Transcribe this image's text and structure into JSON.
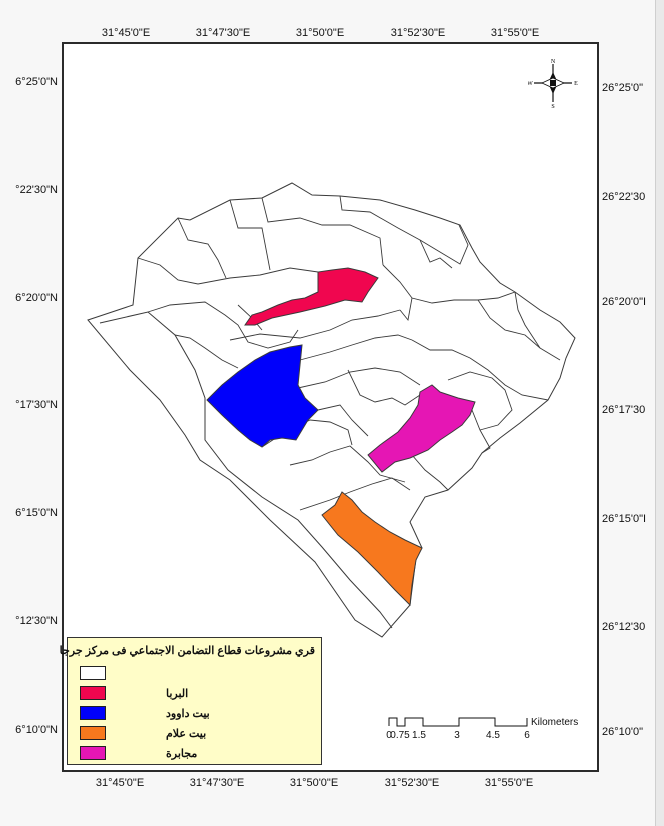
{
  "map": {
    "top_ticks": [
      "31°45'0\"E",
      "31°47'30\"E",
      "31°50'0\"E",
      "31°52'30\"E",
      "31°55'0\"E"
    ],
    "bottom_ticks": [
      "31°45'0\"E",
      "31°47'30\"E",
      "31°50'0\"E",
      "31°52'30\"E",
      "31°55'0\"E"
    ],
    "left_ticks": [
      "6°25'0\"N",
      "°22'30\"N",
      "6°20'0\"N",
      "°17'30\"N",
      "6°15'0\"N",
      "°12'30\"N",
      "6°10'0\"N"
    ],
    "right_ticks": [
      "26°25'0\"",
      "26°22'30",
      "26°20'0\"I",
      "26°17'30",
      "26°15'0\"I",
      "26°12'30",
      "26°10'0\""
    ]
  },
  "legend": {
    "title": "قري مشروعات قطاع التضامن الاجتماعي فى مركز جرجا",
    "items": [
      {
        "label": "",
        "color": "#ffffff"
      },
      {
        "label": "البربا",
        "color": "#f0064f"
      },
      {
        "label": "بيت داوود",
        "color": "#0000fb"
      },
      {
        "label": "بيت علام",
        "color": "#f7781e"
      },
      {
        "label": "مجابرة",
        "color": "#e516b4"
      }
    ]
  },
  "scale_bar": {
    "unit": "Kilometers",
    "labels": [
      "0",
      "0.75",
      "1.5",
      "3",
      "4.5",
      "6"
    ]
  },
  "compass": {
    "n": "N",
    "s": "S",
    "e": "E",
    "w": "W"
  },
  "colors": {
    "boundary": "#3a3a3a",
    "frame": "#2b2b2b",
    "legend_bg": "#fffdc8"
  }
}
